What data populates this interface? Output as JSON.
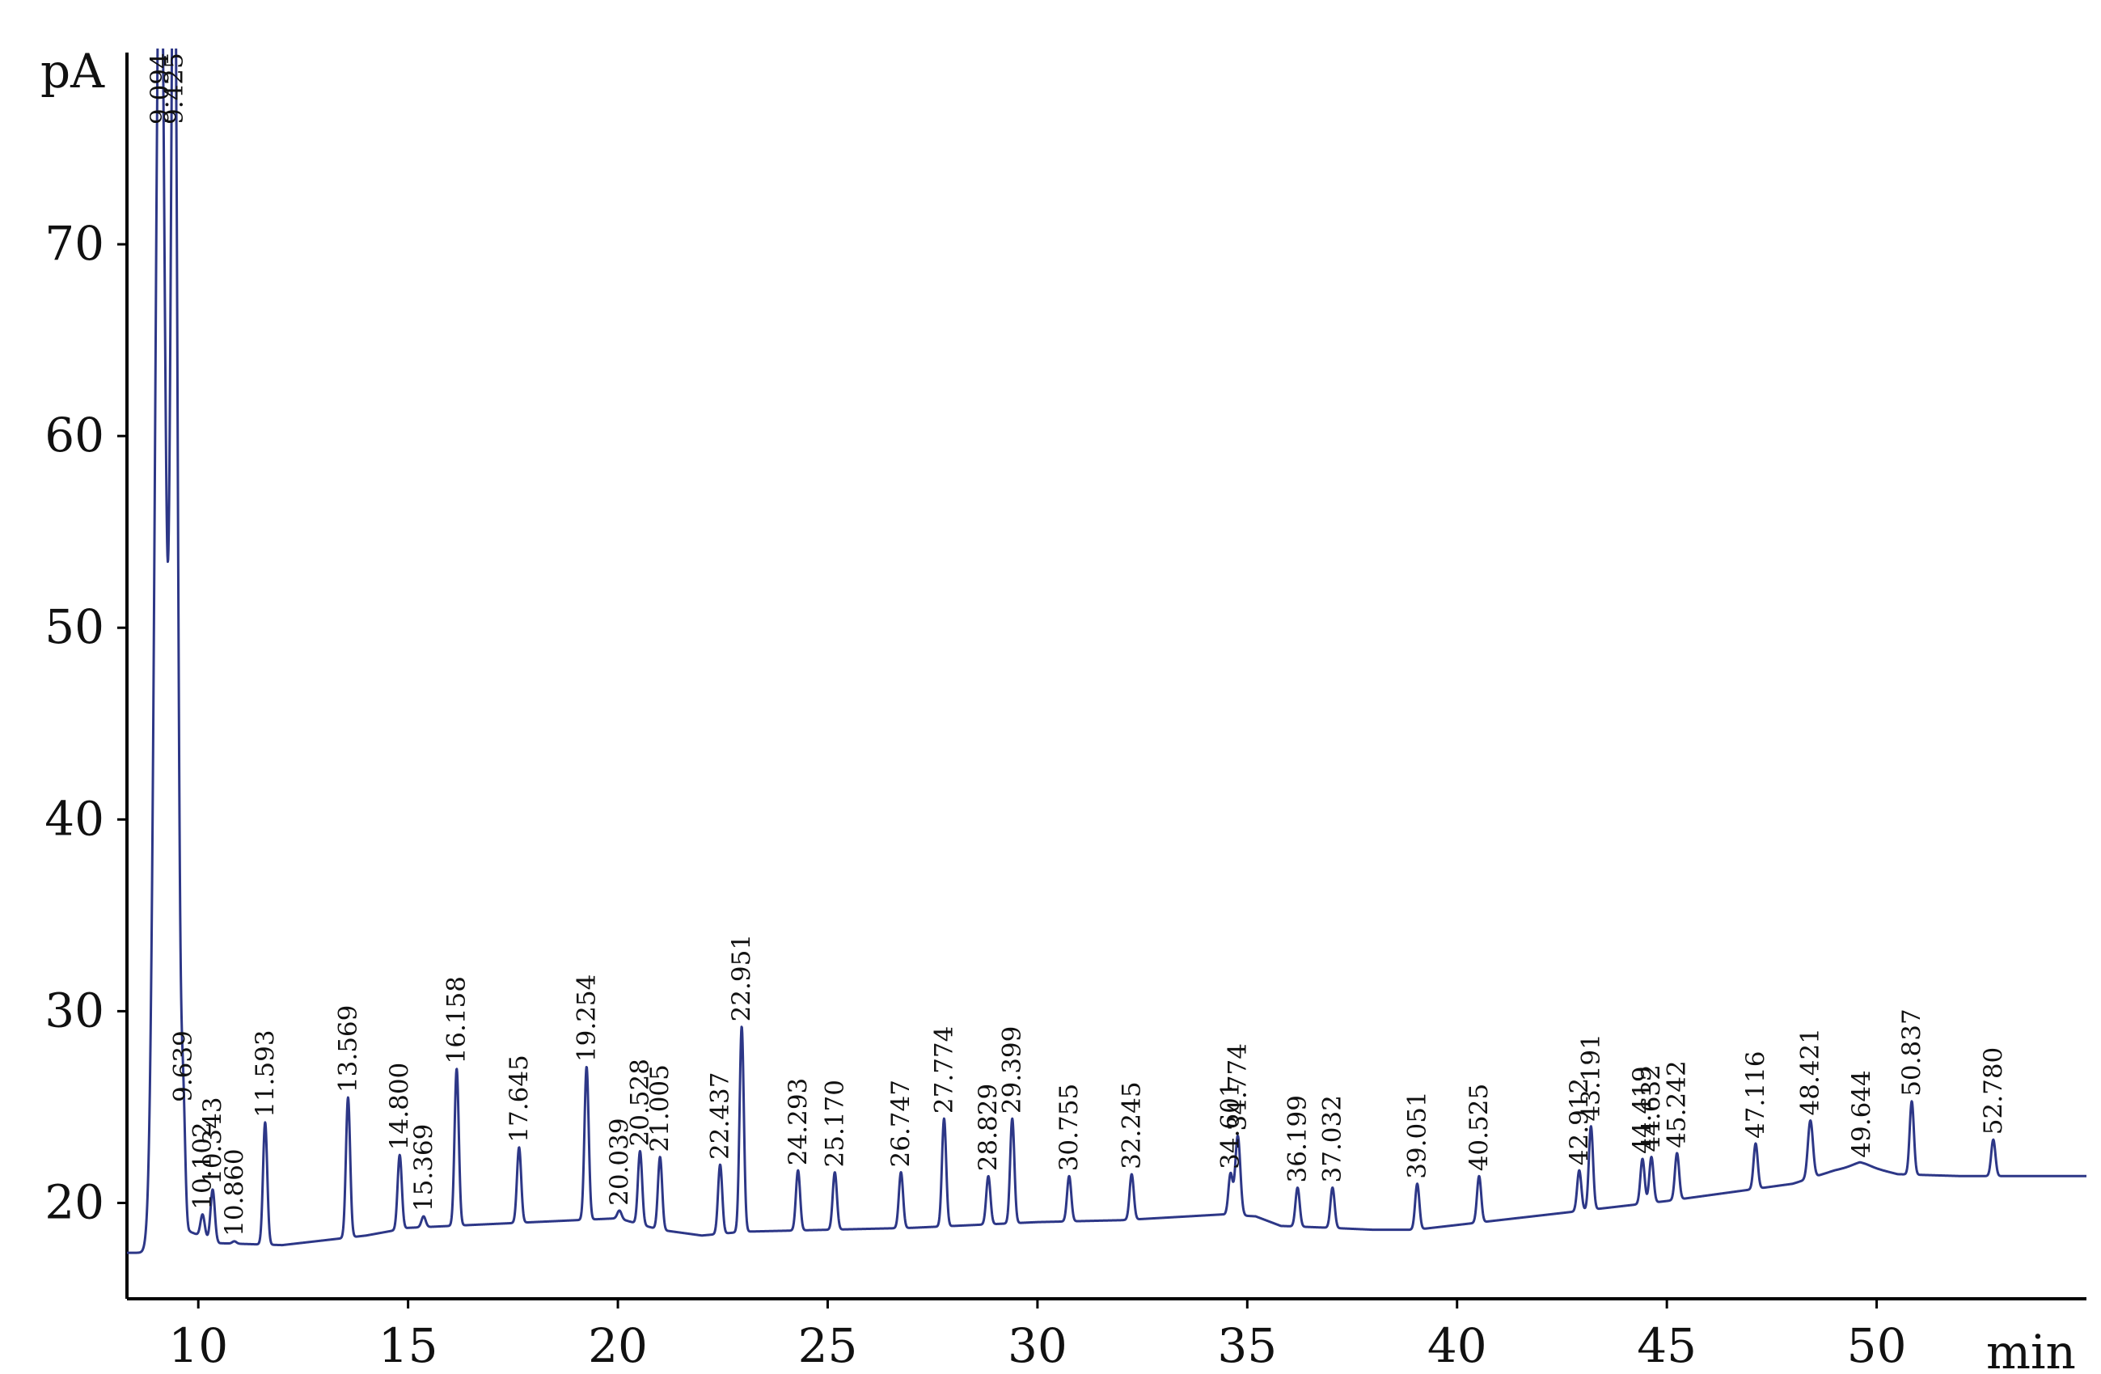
{
  "chart_data": {
    "type": "line",
    "title": "",
    "xlabel": "min",
    "ylabel": "pA",
    "xlim": [
      8.3,
      55
    ],
    "ylim": [
      15,
      80
    ],
    "x_ticks": [
      10,
      15,
      20,
      25,
      30,
      35,
      40,
      45,
      50
    ],
    "y_ticks": [
      20,
      30,
      40,
      50,
      60,
      70
    ],
    "line_color": "#2d3787",
    "grid": false,
    "baseline": [
      [
        8.3,
        17.4
      ],
      [
        9.0,
        17.4
      ],
      [
        9.8,
        18.5
      ],
      [
        10.5,
        17.9
      ],
      [
        12,
        17.8
      ],
      [
        14,
        18.3
      ],
      [
        15,
        18.7
      ],
      [
        17,
        18.9
      ],
      [
        19,
        19.1
      ],
      [
        20,
        19.2
      ],
      [
        21,
        18.6
      ],
      [
        22,
        18.3
      ],
      [
        23,
        18.5
      ],
      [
        25,
        18.6
      ],
      [
        27,
        18.7
      ],
      [
        28,
        18.8
      ],
      [
        30,
        19.0
      ],
      [
        32,
        19.1
      ],
      [
        34.4,
        19.4
      ],
      [
        35.2,
        19.3
      ],
      [
        35.8,
        18.8
      ],
      [
        37,
        18.7
      ],
      [
        38,
        18.6
      ],
      [
        39,
        18.6
      ],
      [
        41,
        19.1
      ],
      [
        43,
        19.6
      ],
      [
        45,
        20.1
      ],
      [
        46,
        20.4
      ],
      [
        48,
        21.0
      ],
      [
        49,
        21.7
      ],
      [
        49.6,
        22.0
      ],
      [
        50.5,
        21.5
      ],
      [
        52,
        21.4
      ],
      [
        55,
        21.4
      ]
    ],
    "peaks": [
      {
        "rt": "9.094",
        "x": 9.094,
        "height": 90,
        "width": 0.12
      },
      {
        "rt": "9.425",
        "x": 9.425,
        "height": 90,
        "width": 0.08
      },
      {
        "rt": "9.639",
        "x": 9.639,
        "height": 25.0,
        "width": 0.05
      },
      {
        "rt": "10.102",
        "x": 10.102,
        "height": 19.4,
        "width": 0.05
      },
      {
        "rt": "10.343",
        "x": 10.343,
        "height": 20.7,
        "width": 0.05
      },
      {
        "rt": "10.860",
        "x": 10.86,
        "height": 18.0,
        "width": 0.05
      },
      {
        "rt": "11.593",
        "x": 11.593,
        "height": 24.2,
        "width": 0.05
      },
      {
        "rt": "13.569",
        "x": 13.569,
        "height": 25.5,
        "width": 0.05
      },
      {
        "rt": "14.800",
        "x": 14.8,
        "height": 22.5,
        "width": 0.05
      },
      {
        "rt": "15.369",
        "x": 15.369,
        "height": 19.3,
        "width": 0.05
      },
      {
        "rt": "16.158",
        "x": 16.158,
        "height": 27.0,
        "width": 0.05
      },
      {
        "rt": "17.645",
        "x": 17.645,
        "height": 22.9,
        "width": 0.05
      },
      {
        "rt": "19.254",
        "x": 19.254,
        "height": 27.1,
        "width": 0.05
      },
      {
        "rt": "20.039",
        "x": 20.039,
        "height": 19.6,
        "width": 0.05
      },
      {
        "rt": "20.528",
        "x": 20.528,
        "height": 22.7,
        "width": 0.05
      },
      {
        "rt": "21.005",
        "x": 21.005,
        "height": 22.4,
        "width": 0.05
      },
      {
        "rt": "22.437",
        "x": 22.437,
        "height": 22.0,
        "width": 0.05
      },
      {
        "rt": "22.951",
        "x": 22.951,
        "height": 29.2,
        "width": 0.05
      },
      {
        "rt": "24.293",
        "x": 24.293,
        "height": 21.7,
        "width": 0.05
      },
      {
        "rt": "25.170",
        "x": 25.17,
        "height": 21.6,
        "width": 0.05
      },
      {
        "rt": "26.747",
        "x": 26.747,
        "height": 21.6,
        "width": 0.05
      },
      {
        "rt": "27.774",
        "x": 27.774,
        "height": 24.4,
        "width": 0.05
      },
      {
        "rt": "28.829",
        "x": 28.829,
        "height": 21.4,
        "width": 0.05
      },
      {
        "rt": "29.399",
        "x": 29.399,
        "height": 24.4,
        "width": 0.05
      },
      {
        "rt": "30.755",
        "x": 30.755,
        "height": 21.4,
        "width": 0.05
      },
      {
        "rt": "32.245",
        "x": 32.245,
        "height": 21.5,
        "width": 0.05
      },
      {
        "rt": "34.601",
        "x": 34.601,
        "height": 21.5,
        "width": 0.05
      },
      {
        "rt": "34.774",
        "x": 34.774,
        "height": 23.5,
        "width": 0.06
      },
      {
        "rt": "36.199",
        "x": 36.199,
        "height": 20.8,
        "width": 0.05
      },
      {
        "rt": "37.032",
        "x": 37.032,
        "height": 20.8,
        "width": 0.05
      },
      {
        "rt": "39.051",
        "x": 39.051,
        "height": 21.0,
        "width": 0.05
      },
      {
        "rt": "40.525",
        "x": 40.525,
        "height": 21.4,
        "width": 0.05
      },
      {
        "rt": "42.912",
        "x": 42.912,
        "height": 21.7,
        "width": 0.05
      },
      {
        "rt": "43.191",
        "x": 43.191,
        "height": 24.0,
        "width": 0.05
      },
      {
        "rt": "44.419",
        "x": 44.419,
        "height": 22.3,
        "width": 0.05
      },
      {
        "rt": "44.632",
        "x": 44.632,
        "height": 22.4,
        "width": 0.05
      },
      {
        "rt": "45.242",
        "x": 45.242,
        "height": 22.6,
        "width": 0.05
      },
      {
        "rt": "47.116",
        "x": 47.116,
        "height": 23.1,
        "width": 0.05
      },
      {
        "rt": "48.421",
        "x": 48.421,
        "height": 24.3,
        "width": 0.06
      },
      {
        "rt": "49.644",
        "x": 49.644,
        "height": 22.1,
        "width": 0.2
      },
      {
        "rt": "50.837",
        "x": 50.837,
        "height": 25.3,
        "width": 0.05
      },
      {
        "rt": "52.780",
        "x": 52.78,
        "height": 23.3,
        "width": 0.05
      }
    ]
  }
}
